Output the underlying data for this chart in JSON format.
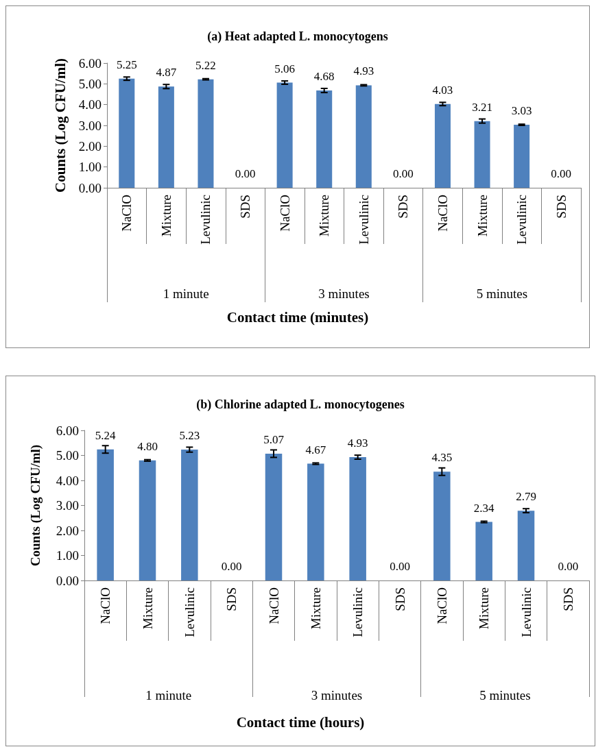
{
  "chart_data": [
    {
      "type": "bar",
      "title": "(a) Heat adapted L. monocytogens",
      "xlabel": "Contact time (minutes)",
      "ylabel": "Counts (Log CFU/ml)",
      "categories": [
        "NaClO",
        "Mixture",
        "Levulinic",
        "SDS",
        "NaClO",
        "Mixture",
        "Levulinic",
        "SDS",
        "NaClO",
        "Mixture",
        "Levulinic",
        "SDS"
      ],
      "annotations": [
        "1 minute",
        "3 minutes",
        "5 minutes"
      ],
      "values": [
        5.25,
        4.87,
        5.22,
        0,
        5.06,
        4.68,
        4.93,
        0,
        4.03,
        3.21,
        3.03,
        0
      ],
      "errors": [
        0.08,
        0.1,
        0.03,
        null,
        0.08,
        0.1,
        0.03,
        null,
        0.08,
        0.1,
        0.03,
        null
      ],
      "value_labels": [
        "5.25",
        "4.87",
        "5.22",
        "0.00",
        "5.06",
        "4.68",
        "4.93",
        "0.00",
        "4.03",
        "3.21",
        "3.03",
        "0.00"
      ],
      "color": "#4f81bd",
      "ylim": [
        0,
        6
      ],
      "yticks": [
        {
          "value": 0,
          "label": "0.00"
        },
        {
          "value": 1,
          "label": "1.00"
        },
        {
          "value": 2,
          "label": "2.00"
        },
        {
          "value": 3,
          "label": "3.00"
        },
        {
          "value": 4,
          "label": "4.00"
        },
        {
          "value": 5,
          "label": "5.00"
        },
        {
          "value": 6,
          "label": "6.00"
        }
      ],
      "grid": false
    },
    {
      "type": "bar",
      "title": "(b) Chlorine adapted L. monocytogenes",
      "xlabel": "Contact time (hours)",
      "ylabel": "Counts (Log CFU/ml)",
      "categories": [
        "NaClO",
        "Mixture",
        "Levulinic",
        "SDS",
        "NaClO",
        "Mixture",
        "Levulinic",
        "SDS",
        "NaClO",
        "Mixture",
        "Levulinic",
        "SDS"
      ],
      "annotations": [
        "1 minute",
        "3 minutes",
        "5 minutes"
      ],
      "values": [
        5.24,
        4.8,
        5.23,
        0,
        5.07,
        4.67,
        4.93,
        0,
        4.35,
        2.34,
        2.79,
        0
      ],
      "errors": [
        0.15,
        0.03,
        0.1,
        null,
        0.15,
        0.03,
        0.08,
        null,
        0.15,
        0.03,
        0.08,
        null
      ],
      "value_labels": [
        "5.24",
        "4.80",
        "5.23",
        "0.00",
        "5.07",
        "4.67",
        "4.93",
        "0.00",
        "4.35",
        "2.34",
        "2.79",
        "0.00"
      ],
      "color": "#4f81bd",
      "ylim": [
        0,
        6
      ],
      "yticks": [
        {
          "value": 0,
          "label": "0.00"
        },
        {
          "value": 1,
          "label": "1.00"
        },
        {
          "value": 2,
          "label": "2.00"
        },
        {
          "value": 3,
          "label": "3.00"
        },
        {
          "value": 4,
          "label": "4.00"
        },
        {
          "value": 5,
          "label": "5.00"
        },
        {
          "value": 6,
          "label": "6.00"
        }
      ],
      "grid": false
    }
  ]
}
